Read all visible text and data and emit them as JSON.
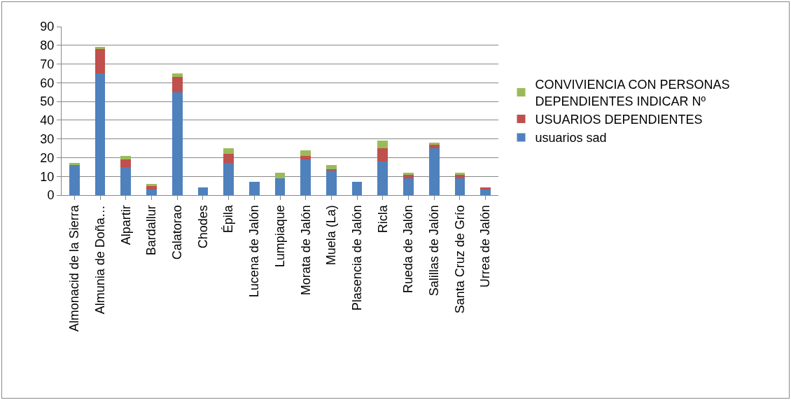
{
  "chart_data": {
    "type": "bar",
    "stacked": true,
    "categories": [
      "Almonacid de la Sierra",
      "Almunia de Doña…",
      "Alpartir",
      "Bardallur",
      "Calatorao",
      "Chodes",
      "Épila",
      "Lucena de Jalón",
      "Lumpiaque",
      "Morata de Jalón",
      "Muela (La)",
      "Plasencia de Jalón",
      "Ricla",
      "Rueda de Jalón",
      "Salillas de Jalón",
      "Santa Cruz de Grío",
      "Urrea de Jalón"
    ],
    "series": [
      {
        "name": "usuarios sad",
        "color": "#4f81bd",
        "values": [
          16,
          65,
          15,
          3,
          55,
          4,
          17,
          7,
          9,
          19,
          13,
          7,
          18,
          9,
          25,
          9,
          3
        ]
      },
      {
        "name": "USUARIOS DEPENDIENTES",
        "color": "#c0504d",
        "values": [
          0,
          13,
          4,
          2,
          8,
          0,
          5,
          0,
          0,
          2,
          1,
          0,
          7,
          2,
          2,
          2,
          1
        ]
      },
      {
        "name": "CONVIVIENCIA CON PERSONAS DEPENDIENTES INDICAR Nº",
        "color": "#9bbb59",
        "values": [
          1,
          1,
          2,
          1,
          2,
          0,
          3,
          0,
          3,
          3,
          2,
          0,
          4,
          1,
          1,
          1,
          0
        ]
      }
    ],
    "ylim": [
      0,
      90
    ],
    "yticks": [
      0,
      10,
      20,
      30,
      40,
      50,
      60,
      70,
      80,
      90
    ],
    "grid": "y",
    "legend": "right"
  }
}
